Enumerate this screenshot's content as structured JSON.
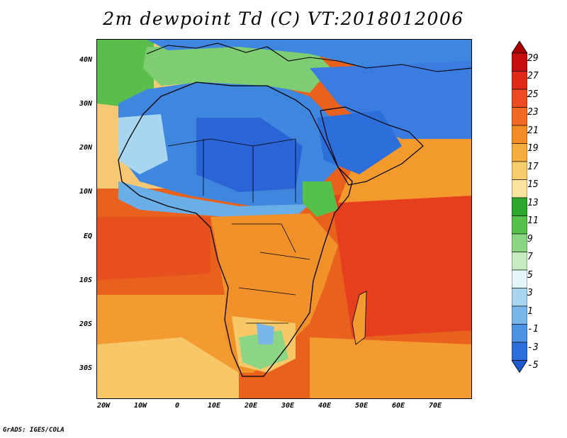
{
  "title": "2m dewpoint Td (C) VT:2018012006",
  "credit": "GrADS: IGES/COLA",
  "y_axis": {
    "ticks": [
      "40N",
      "30N",
      "20N",
      "10N",
      "EQ",
      "10S",
      "20S",
      "30S"
    ]
  },
  "x_axis": {
    "ticks": [
      "20W",
      "10W",
      "0",
      "10E",
      "20E",
      "30E",
      "40E",
      "50E",
      "60E",
      "70E"
    ]
  },
  "colorbar": {
    "labels": [
      "29",
      "27",
      "25",
      "23",
      "21",
      "19",
      "17",
      "15",
      "13",
      "11",
      "9",
      "7",
      "5",
      "3",
      "1",
      "-1",
      "-3",
      "-5"
    ],
    "colors": [
      "#a80000",
      "#c80f0f",
      "#e02a18",
      "#eb4a22",
      "#f06a23",
      "#f38c24",
      "#f5ad3e",
      "#f7cc6a",
      "#fae59f",
      "#2ea72e",
      "#55c04a",
      "#8cd683",
      "#c7ebc0",
      "#e5f6fb",
      "#a8d6f0",
      "#78b6ea",
      "#4c93e2",
      "#2c6fdb",
      "#1f58cf"
    ]
  },
  "map": {
    "region": "Africa and Arabian Peninsula",
    "variable": "2m dewpoint",
    "units": "C",
    "valid_time": "2018012006"
  }
}
